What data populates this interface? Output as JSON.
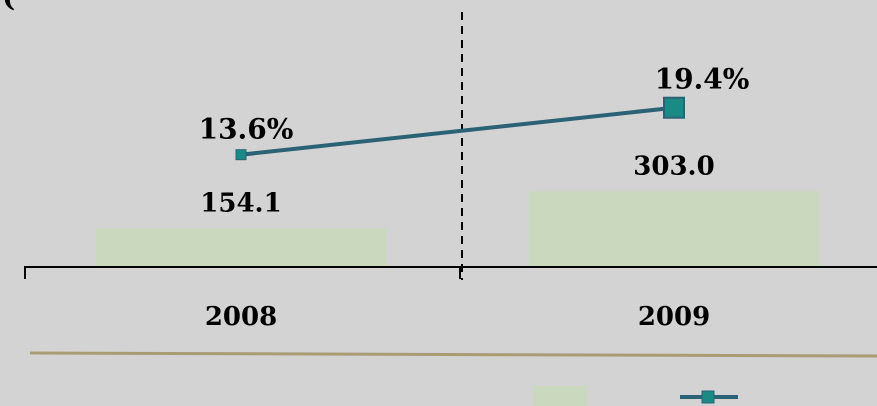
{
  "chart_data": {
    "type": "bar",
    "title": "(",
    "categories": [
      "2008",
      "2009"
    ],
    "series": [
      {
        "kind": "bar",
        "values": [
          154.1,
          303.0
        ],
        "labels": [
          "154.1",
          "303.0"
        ]
      },
      {
        "kind": "line",
        "values": [
          13.6,
          19.4
        ],
        "labels": [
          "13.6%",
          "19.4%"
        ]
      }
    ],
    "colors": {
      "background": "#d4d3d3",
      "bar": "#cad8bd",
      "line": "#2b6275",
      "marker": "#1a8a85",
      "divider": "#a89c74",
      "axis": "#000000"
    },
    "legend_position": "bottom",
    "grid": false
  }
}
